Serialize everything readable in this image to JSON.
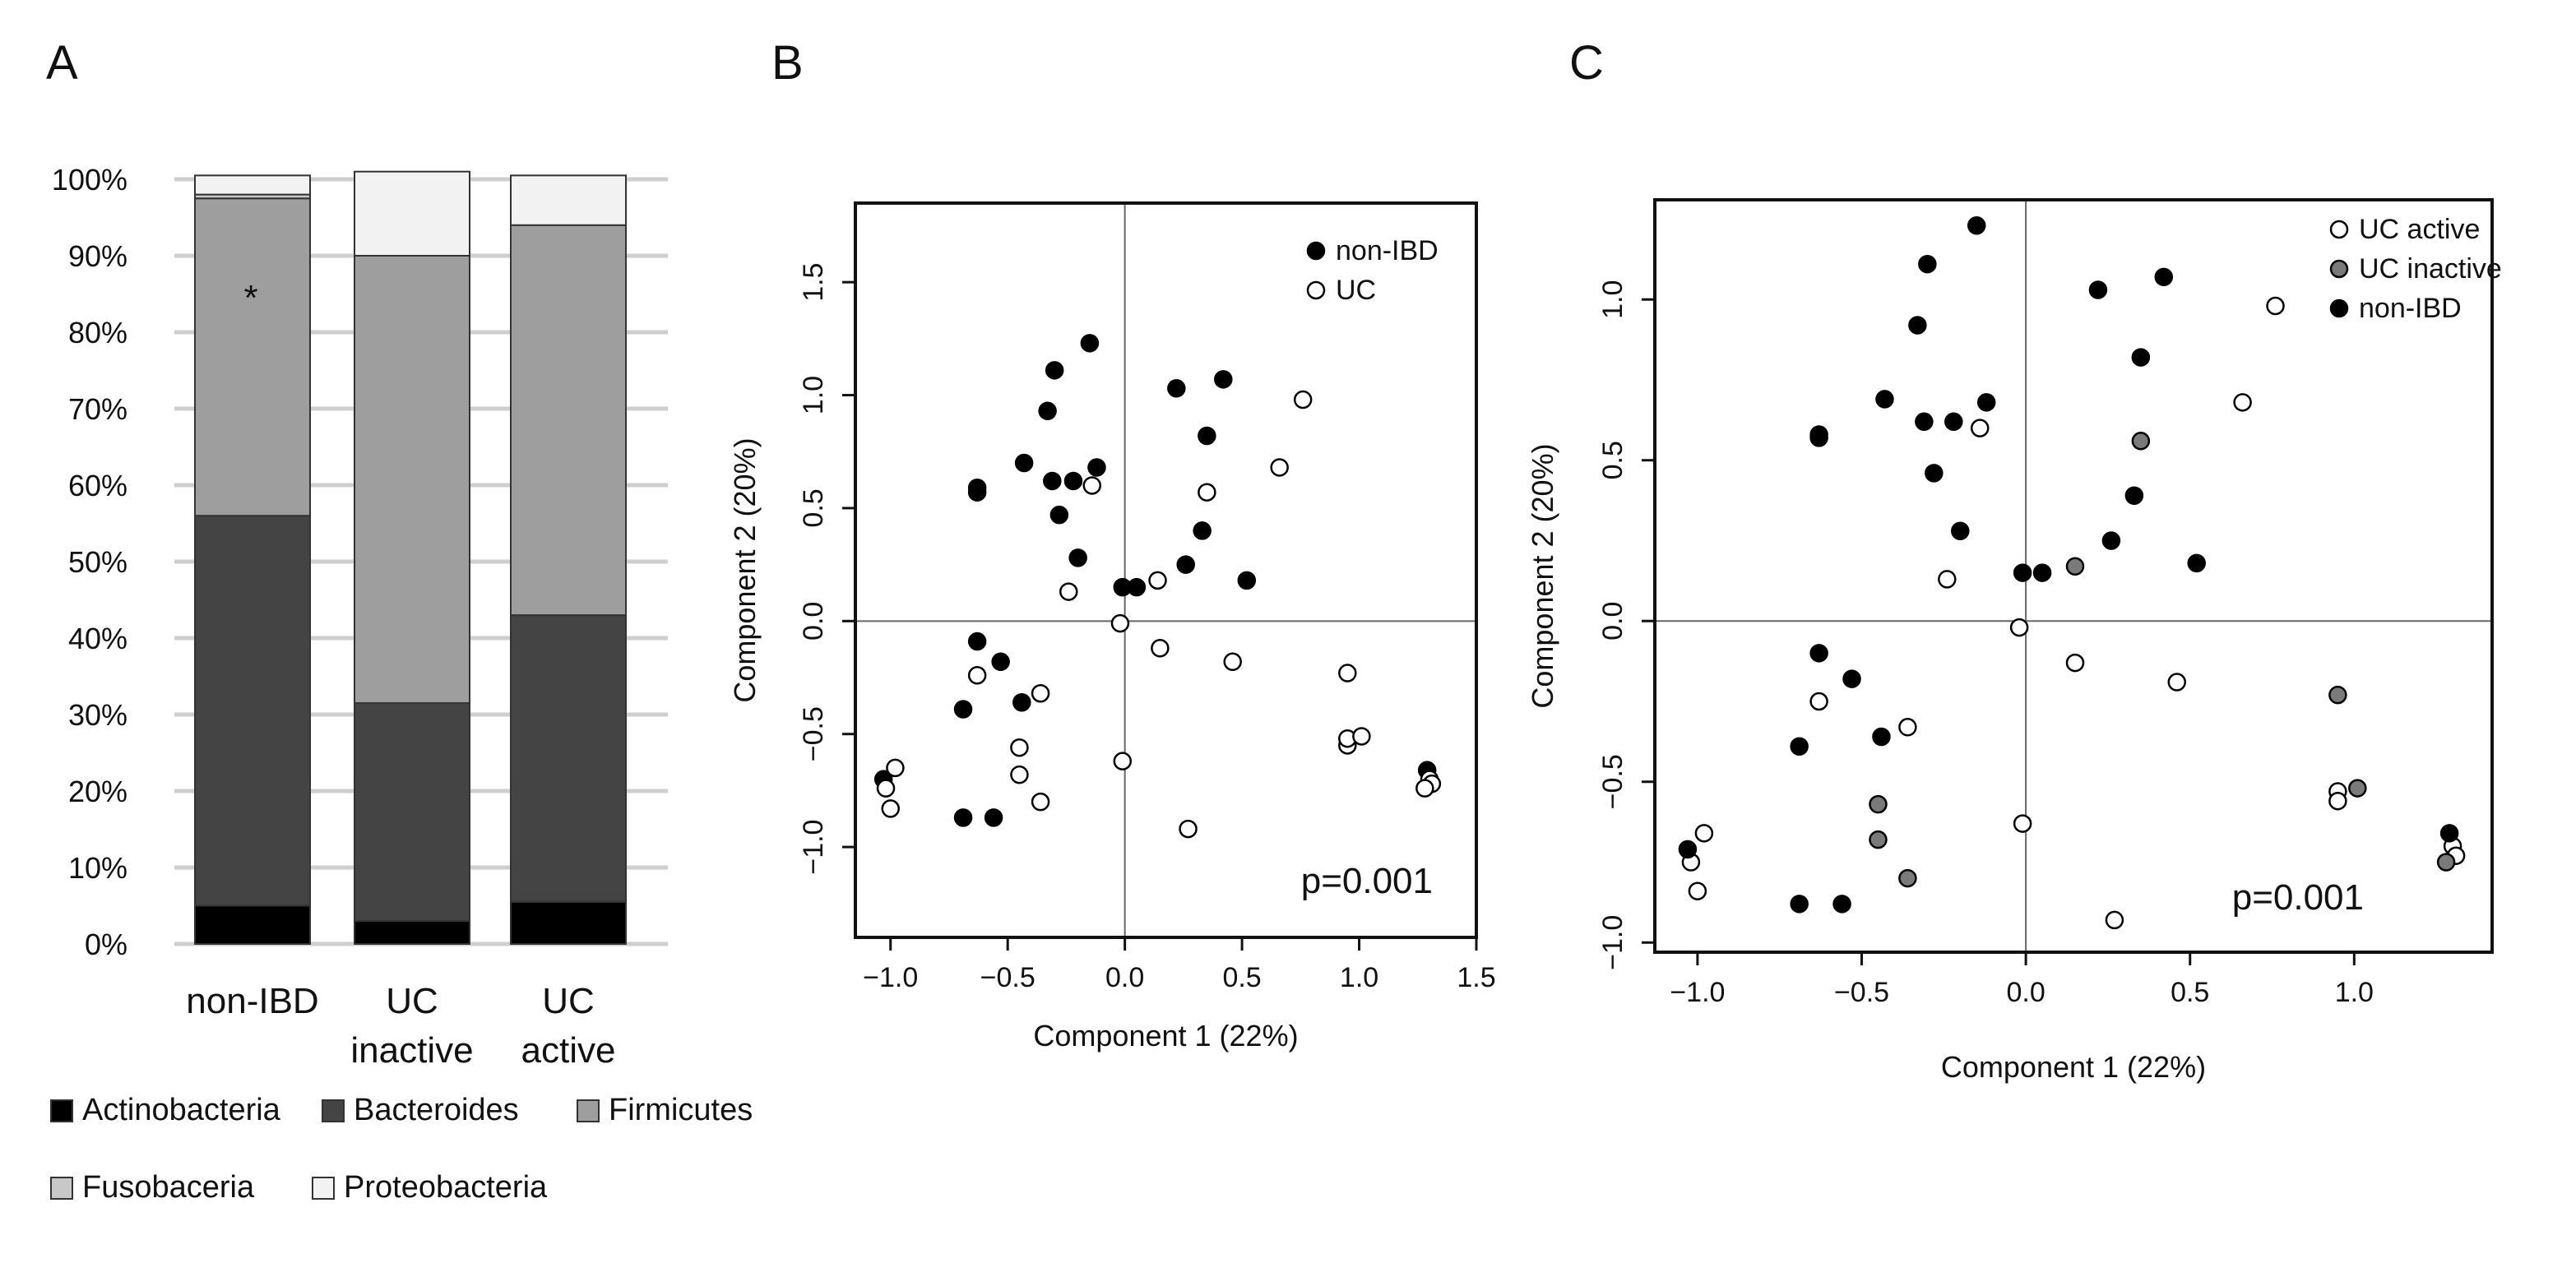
{
  "panel_labels": [
    "A",
    "B",
    "C"
  ],
  "chart_data": [
    {
      "panel": "A",
      "type": "bar",
      "stacked": true,
      "categories": [
        "non-IBD",
        "UC\ninactive",
        "UC\nactive"
      ],
      "ylim": [
        0,
        100
      ],
      "yticks": [
        "0%",
        "10%",
        "20%",
        "30%",
        "40%",
        "50%",
        "60%",
        "70%",
        "80%",
        "90%",
        "100%"
      ],
      "grid": true,
      "legend_position": "bottom",
      "annotation": "*",
      "annotation_category": 0,
      "annotation_value": 84,
      "series": [
        {
          "name": "Actinobacteria",
          "color": "#000000",
          "values": [
            5,
            3,
            5.5
          ]
        },
        {
          "name": "Bacteroides",
          "color": "#444444",
          "values": [
            51,
            28.5,
            37.5
          ]
        },
        {
          "name": "Firmicutes",
          "color": "#9e9e9e",
          "values": [
            41.5,
            58.5,
            51
          ]
        },
        {
          "name": "Fusobaceria",
          "color": "#c8c8c8",
          "values": [
            0.5,
            0,
            0
          ]
        },
        {
          "name": "Proteobacteria",
          "color": "#f2f2f2",
          "values": [
            2.5,
            11,
            6.5
          ]
        }
      ]
    },
    {
      "panel": "B",
      "type": "scatter",
      "xlabel": "Component 1 (22%)",
      "ylabel": "Component 2 (20%)",
      "xlim": [
        -1.15,
        1.5
      ],
      "ylim": [
        -1.4,
        1.85
      ],
      "xticks": [
        -1.0,
        -0.5,
        0.0,
        0.5,
        1.0,
        1.5
      ],
      "xtick_labels": [
        "−1.0",
        "−0.5",
        "0.0",
        "0.5",
        "1.0",
        "1.5"
      ],
      "yticks": [
        -1.0,
        -0.5,
        0.0,
        0.5,
        1.0,
        1.5
      ],
      "ytick_labels": [
        "−1.0",
        "−0.5",
        "0.0",
        "0.5",
        "1.0",
        "1.5"
      ],
      "legend_position": "top-right",
      "annotation": "p=0.001",
      "series": [
        {
          "name": "non-IBD",
          "fill": "#000000",
          "points": [
            [
              -0.15,
              1.23
            ],
            [
              -0.3,
              1.11
            ],
            [
              -0.33,
              0.93
            ],
            [
              -0.63,
              0.59
            ],
            [
              -0.63,
              0.57
            ],
            [
              -0.43,
              0.7
            ],
            [
              -0.31,
              0.62
            ],
            [
              -0.22,
              0.62
            ],
            [
              -0.12,
              0.68
            ],
            [
              -0.28,
              0.47
            ],
            [
              -0.2,
              0.28
            ],
            [
              0.22,
              1.03
            ],
            [
              0.42,
              1.07
            ],
            [
              0.35,
              0.82
            ],
            [
              0.33,
              0.4
            ],
            [
              0.26,
              0.25
            ],
            [
              0.52,
              0.18
            ],
            [
              -0.01,
              0.15
            ],
            [
              0.05,
              0.15
            ],
            [
              -0.63,
              -0.09
            ],
            [
              -0.53,
              -0.18
            ],
            [
              -0.69,
              -0.39
            ],
            [
              -0.44,
              -0.36
            ],
            [
              -1.03,
              -0.7
            ],
            [
              -0.69,
              -0.87
            ],
            [
              -0.56,
              -0.87
            ],
            [
              1.29,
              -0.66
            ]
          ]
        },
        {
          "name": "UC",
          "fill": "#ffffff",
          "points": [
            [
              0.76,
              0.98
            ],
            [
              0.66,
              0.68
            ],
            [
              0.35,
              0.57
            ],
            [
              -0.14,
              0.6
            ],
            [
              0.14,
              0.18
            ],
            [
              -0.24,
              0.13
            ],
            [
              -0.02,
              -0.01
            ],
            [
              0.15,
              -0.12
            ],
            [
              0.46,
              -0.18
            ],
            [
              0.95,
              -0.23
            ],
            [
              -0.63,
              -0.24
            ],
            [
              -0.36,
              -0.32
            ],
            [
              -0.45,
              -0.56
            ],
            [
              -0.45,
              -0.68
            ],
            [
              -0.36,
              -0.8
            ],
            [
              -0.01,
              -0.62
            ],
            [
              0.27,
              -0.92
            ],
            [
              -0.98,
              -0.65
            ],
            [
              -1.02,
              -0.74
            ],
            [
              -1.0,
              -0.83
            ],
            [
              0.95,
              -0.55
            ],
            [
              0.95,
              -0.52
            ],
            [
              1.01,
              -0.51
            ],
            [
              1.3,
              -0.7
            ],
            [
              1.31,
              -0.72
            ],
            [
              1.28,
              -0.74
            ]
          ]
        }
      ]
    },
    {
      "panel": "C",
      "type": "scatter",
      "xlabel": "Component 1 (22%)",
      "ylabel": "Component 2 (20%)",
      "xlim": [
        -1.13,
        1.42
      ],
      "ylim": [
        -1.03,
        1.31
      ],
      "xticks": [
        -1.0,
        -0.5,
        0.0,
        0.5,
        1.0
      ],
      "xtick_labels": [
        "−1.0",
        "−0.5",
        "0.0",
        "0.5",
        "1.0"
      ],
      "yticks": [
        -1.0,
        -0.5,
        0.0,
        0.5,
        1.0
      ],
      "ytick_labels": [
        "−1.0",
        "−0.5",
        "0.0",
        "0.5",
        "1.0"
      ],
      "legend_position": "top-right",
      "annotation": "p=0.001",
      "series": [
        {
          "name": "UC active",
          "fill": "#ffffff",
          "points": [
            [
              0.76,
              0.98
            ],
            [
              0.66,
              0.68
            ],
            [
              -0.14,
              0.6
            ],
            [
              -0.24,
              0.13
            ],
            [
              -0.02,
              -0.02
            ],
            [
              0.15,
              -0.13
            ],
            [
              0.46,
              -0.19
            ],
            [
              -0.63,
              -0.25
            ],
            [
              -0.36,
              -0.33
            ],
            [
              -0.98,
              -0.66
            ],
            [
              -1.02,
              -0.75
            ],
            [
              -1.0,
              -0.84
            ],
            [
              -0.01,
              -0.63
            ],
            [
              0.27,
              -0.93
            ],
            [
              0.95,
              -0.53
            ],
            [
              0.95,
              -0.56
            ],
            [
              1.3,
              -0.7
            ],
            [
              1.31,
              -0.73
            ]
          ]
        },
        {
          "name": "UC inactive",
          "fill": "#7a7a7a",
          "points": [
            [
              0.35,
              0.56
            ],
            [
              0.15,
              0.17
            ],
            [
              0.95,
              -0.23
            ],
            [
              1.01,
              -0.52
            ],
            [
              -0.45,
              -0.57
            ],
            [
              -0.45,
              -0.68
            ],
            [
              -0.36,
              -0.8
            ],
            [
              1.28,
              -0.75
            ]
          ]
        },
        {
          "name": "non-IBD",
          "fill": "#000000",
          "points": [
            [
              -0.15,
              1.23
            ],
            [
              -0.3,
              1.11
            ],
            [
              -0.33,
              0.92
            ],
            [
              -0.63,
              0.58
            ],
            [
              -0.63,
              0.57
            ],
            [
              -0.43,
              0.69
            ],
            [
              -0.31,
              0.62
            ],
            [
              -0.22,
              0.62
            ],
            [
              -0.12,
              0.68
            ],
            [
              -0.28,
              0.46
            ],
            [
              -0.2,
              0.28
            ],
            [
              0.22,
              1.03
            ],
            [
              0.42,
              1.07
            ],
            [
              0.35,
              0.82
            ],
            [
              0.33,
              0.39
            ],
            [
              0.26,
              0.25
            ],
            [
              0.52,
              0.18
            ],
            [
              -0.01,
              0.15
            ],
            [
              0.05,
              0.15
            ],
            [
              -0.63,
              -0.1
            ],
            [
              -0.53,
              -0.18
            ],
            [
              -0.69,
              -0.39
            ],
            [
              -0.44,
              -0.36
            ],
            [
              -1.03,
              -0.71
            ],
            [
              -0.69,
              -0.88
            ],
            [
              -0.56,
              -0.88
            ],
            [
              1.29,
              -0.66
            ]
          ]
        }
      ]
    }
  ]
}
